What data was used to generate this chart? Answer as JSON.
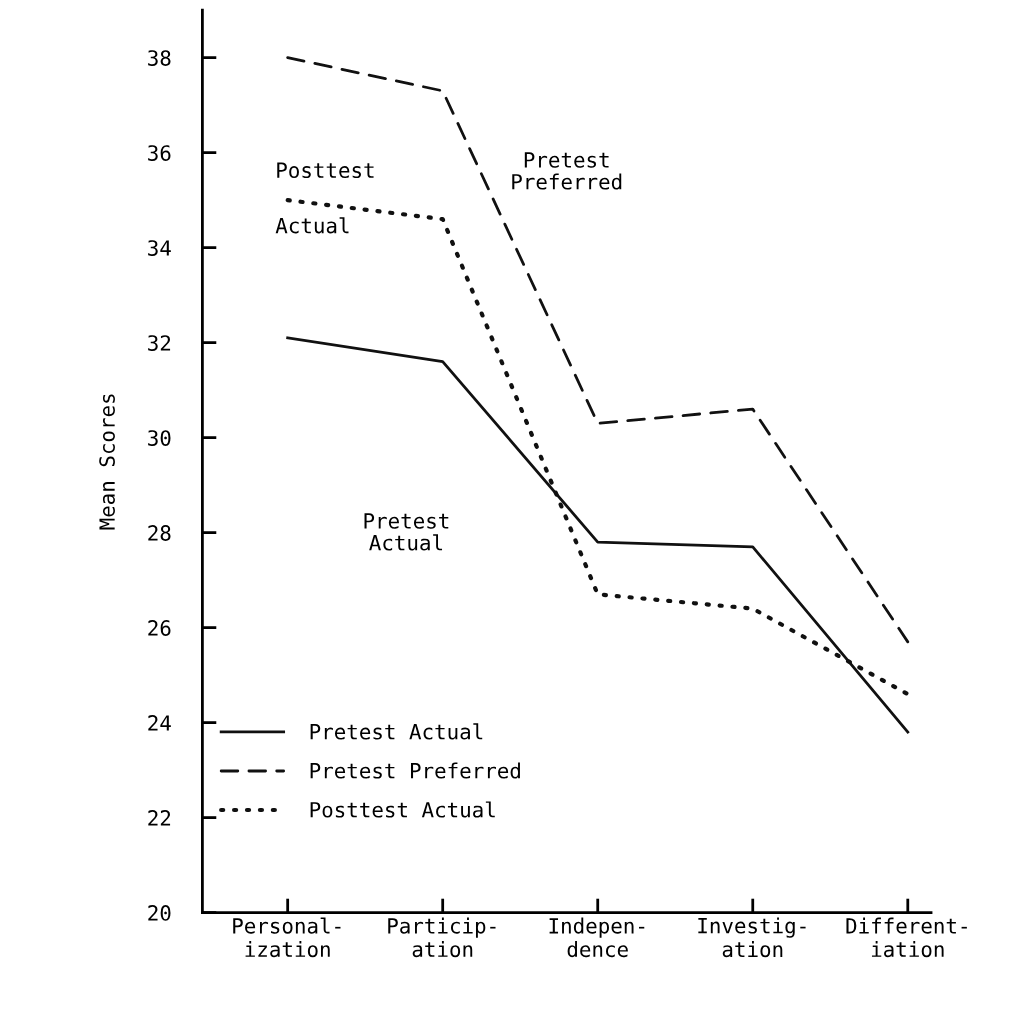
{
  "chart_data": {
    "type": "line",
    "ylabel": "Mean Scores",
    "categories": [
      "Personal-\nization",
      "Particip-\nation",
      "Indepen-\ndence",
      "Investig-\nation",
      "Different-\niation"
    ],
    "series": [
      {
        "name": "Pretest Actual",
        "color": "#111111",
        "line_style": "solid",
        "values": [
          32.1,
          31.6,
          27.8,
          27.7,
          23.8
        ]
      },
      {
        "name": "Pretest Preferred",
        "color": "#111111",
        "line_style": "dashed",
        "values": [
          38.0,
          37.3,
          30.3,
          30.6,
          25.7
        ]
      },
      {
        "name": "Posttest Actual",
        "color": "#111111",
        "line_style": "dotted",
        "values": [
          35.0,
          34.6,
          26.7,
          26.4,
          24.6
        ]
      }
    ],
    "ylim": [
      20,
      39
    ],
    "yticks": [
      20,
      22,
      24,
      26,
      28,
      30,
      32,
      34,
      36,
      38
    ],
    "grid": false,
    "legend": "bottom left",
    "marker": "none",
    "annotations": [
      "Posttest\nActual",
      "Pretest\nPreferred",
      "Pretest\nActual"
    ]
  }
}
